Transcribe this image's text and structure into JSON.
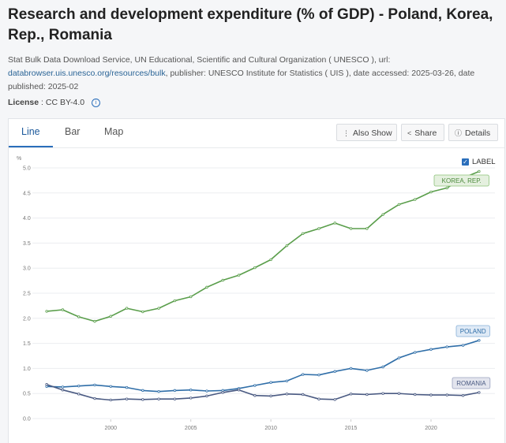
{
  "page": {
    "title": "Research and development expenditure (% of GDP) - Poland, Korea, Rep., Romania",
    "meta_prefix": "Stat Bulk Data Download Service, UN Educational, Scientific and Cultural Organization ( UNESCO ), url:",
    "meta_url": "databrowser.uis.unesco.org/resources/bulk",
    "meta_suffix": ", publisher: UNESCO Institute for Statistics ( UIS ), date accessed: 2025-03-26, date published: 2025-02",
    "license_label": "License",
    "license_value": " : CC BY-4.0",
    "info_icon": "i"
  },
  "tabs": [
    {
      "label": "Line",
      "active": true
    },
    {
      "label": "Bar",
      "active": false
    },
    {
      "label": "Map",
      "active": false
    }
  ],
  "toolbar": {
    "also_show_icon": "⋮",
    "also_show": "Also Show",
    "share_icon": "<",
    "share": "Share",
    "details_icon": "ⓘ",
    "details": "Details"
  },
  "legend_toggle": {
    "label": "LABEL",
    "check": "✓"
  },
  "colors": {
    "korea": "#5a9e4b",
    "poland": "#2f6ea8",
    "romania": "#4a5a82"
  },
  "chart_data": {
    "type": "line",
    "ylabel": "%",
    "ylim": [
      0,
      5
    ],
    "xlim": [
      1995.5,
      2023.5
    ],
    "x_ticks": [
      2000,
      2005,
      2010,
      2015,
      2020
    ],
    "y_ticks": [
      "0.0",
      "0.5",
      "1.0",
      "1.5",
      "2.0",
      "2.5",
      "3.0",
      "3.5",
      "4.0",
      "4.5",
      "5.0"
    ],
    "x": [
      1996,
      1997,
      1998,
      1999,
      2000,
      2001,
      2002,
      2003,
      2004,
      2005,
      2006,
      2007,
      2008,
      2009,
      2010,
      2011,
      2012,
      2013,
      2014,
      2015,
      2016,
      2017,
      2018,
      2019,
      2020,
      2021,
      2022,
      2023
    ],
    "series": [
      {
        "name": "KOREA, REP.",
        "key": "korea",
        "values": [
          2.14,
          2.17,
          2.03,
          1.94,
          2.04,
          2.2,
          2.13,
          2.2,
          2.35,
          2.43,
          2.62,
          2.76,
          2.86,
          3.01,
          3.17,
          3.45,
          3.69,
          3.79,
          3.9,
          3.79,
          3.79,
          4.07,
          4.27,
          4.37,
          4.52,
          4.6,
          4.8,
          4.93
        ]
      },
      {
        "name": "POLAND",
        "key": "poland",
        "values": [
          0.64,
          0.63,
          0.65,
          0.67,
          0.64,
          0.62,
          0.56,
          0.54,
          0.56,
          0.57,
          0.55,
          0.56,
          0.6,
          0.66,
          0.72,
          0.75,
          0.88,
          0.87,
          0.94,
          1.0,
          0.96,
          1.03,
          1.21,
          1.32,
          1.38,
          1.43,
          1.46,
          1.56
        ]
      },
      {
        "name": "ROMANIA",
        "key": "romania",
        "values": [
          0.68,
          0.57,
          0.49,
          0.4,
          0.37,
          0.39,
          0.38,
          0.39,
          0.39,
          0.41,
          0.45,
          0.52,
          0.57,
          0.46,
          0.45,
          0.49,
          0.48,
          0.39,
          0.38,
          0.49,
          0.48,
          0.5,
          0.5,
          0.48,
          0.47,
          0.47,
          0.46,
          0.52
        ]
      }
    ]
  }
}
